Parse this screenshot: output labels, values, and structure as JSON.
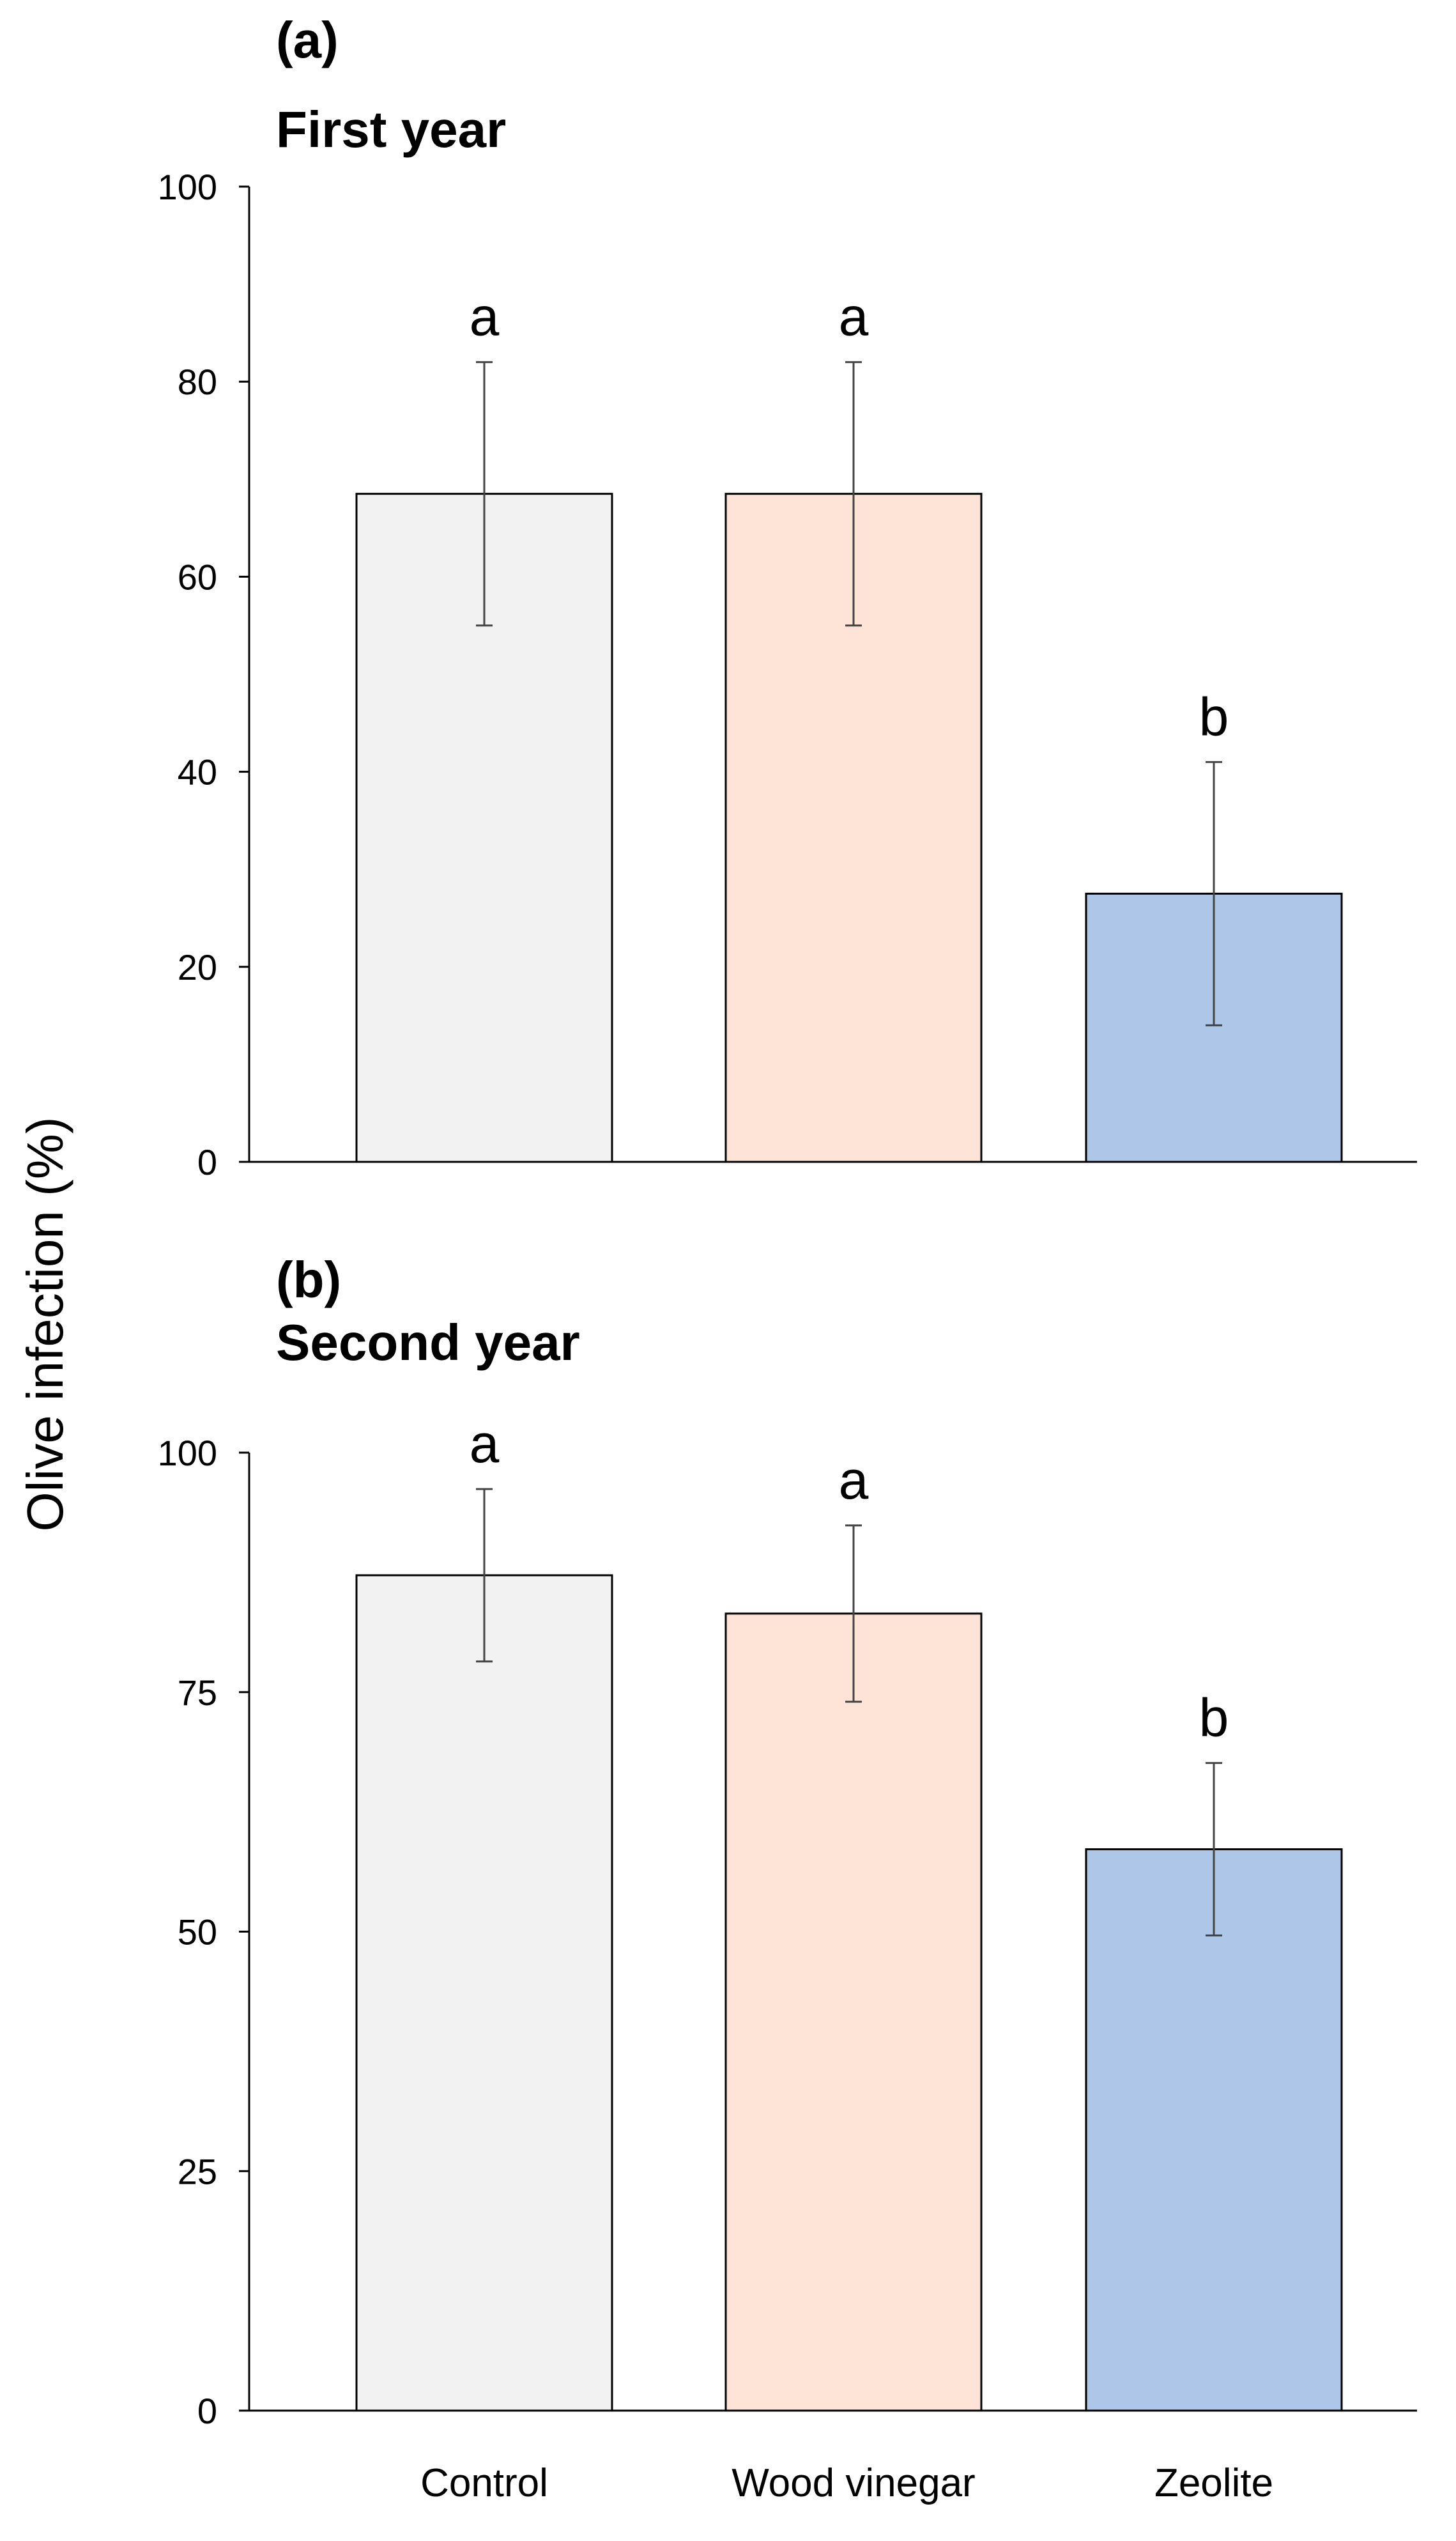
{
  "figure": {
    "ylabel": "Olive infection (%)",
    "categories": [
      "Control",
      "Wood vinegar",
      "Zeolite"
    ]
  },
  "chart_data": [
    {
      "type": "bar",
      "panel_label": "(a)",
      "title": "First year",
      "ylabel": "Olive infection (%)",
      "categories": [
        "Control",
        "Wood vinegar",
        "Zeolite"
      ],
      "values": [
        68.5,
        68.5,
        27.5
      ],
      "error": [
        13.5,
        13.5,
        13.5
      ],
      "significance": [
        "a",
        "a",
        "b"
      ],
      "colors": [
        "#f2f2f2",
        "#fde4d7",
        "#aec7e8"
      ],
      "ylim": [
        0,
        100
      ],
      "yticks": [
        0,
        20,
        40,
        60,
        80,
        100
      ],
      "grid": false
    },
    {
      "type": "bar",
      "panel_label": "(b)",
      "title": "Second year",
      "ylabel": "Olive infection (%)",
      "categories": [
        "Control",
        "Wood vinegar",
        "Zeolite"
      ],
      "values": [
        87.2,
        83.2,
        58.6
      ],
      "error": [
        9.0,
        9.2,
        9.0
      ],
      "significance": [
        "a",
        "a",
        "b"
      ],
      "colors": [
        "#f2f2f2",
        "#fde4d7",
        "#aec7e8"
      ],
      "ylim": [
        0,
        100
      ],
      "yticks": [
        0,
        25,
        50,
        75,
        100
      ],
      "grid": false
    }
  ]
}
